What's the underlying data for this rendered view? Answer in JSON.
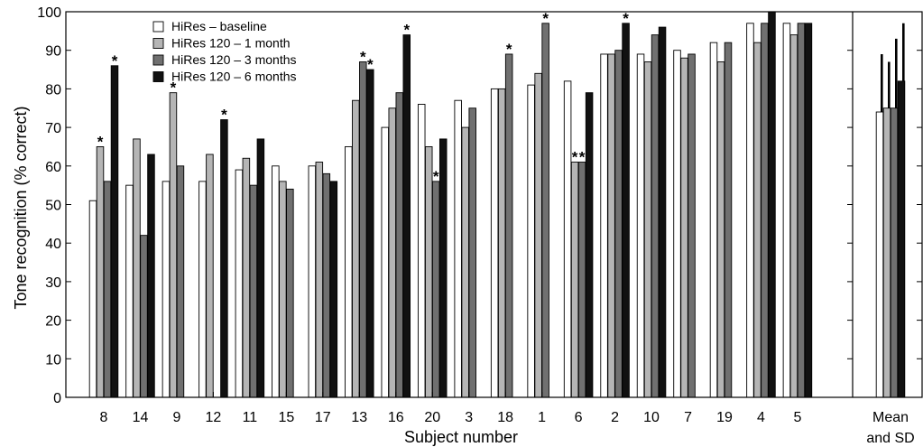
{
  "chart_data": {
    "type": "bar",
    "xlabel": "Subject number",
    "ylabel": "Tone recognition (% correct)",
    "ylim": [
      0,
      100
    ],
    "yticks": [
      0,
      10,
      20,
      30,
      40,
      50,
      60,
      70,
      80,
      90,
      100
    ],
    "categories": [
      "8",
      "14",
      "9",
      "12",
      "11",
      "15",
      "17",
      "13",
      "16",
      "20",
      "3",
      "18",
      "1",
      "6",
      "2",
      "10",
      "7",
      "19",
      "4",
      "5"
    ],
    "series": [
      {
        "name": "HiRes – baseline",
        "color": "#ffffff",
        "values": [
          51,
          55,
          56,
          56,
          59,
          60,
          60,
          65,
          70,
          76,
          77,
          80,
          81,
          82,
          89,
          89,
          90,
          92,
          97,
          97
        ]
      },
      {
        "name": "HiRes 120 – 1 month",
        "color": "#b5b5b5",
        "values": [
          65,
          67,
          79,
          63,
          62,
          56,
          61,
          77,
          75,
          65,
          70,
          80,
          84,
          61,
          89,
          87,
          88,
          87,
          92,
          94
        ]
      },
      {
        "name": "HiRes 120 – 3 months",
        "color": "#707070",
        "values": [
          56,
          42,
          60,
          null,
          55,
          54,
          58,
          87,
          79,
          56,
          75,
          89,
          97,
          61,
          90,
          94,
          89,
          92,
          97,
          97
        ]
      },
      {
        "name": "HiRes 120 – 6 months",
        "color": "#111111",
        "values": [
          86,
          63,
          null,
          72,
          67,
          null,
          56,
          85,
          94,
          67,
          null,
          null,
          null,
          79,
          97,
          96,
          null,
          null,
          100,
          97
        ]
      }
    ],
    "significance_marker": "*",
    "significant": [
      {
        "category": "8",
        "series": 1
      },
      {
        "category": "8",
        "series": 3
      },
      {
        "category": "9",
        "series": 1
      },
      {
        "category": "12",
        "series": 3
      },
      {
        "category": "13",
        "series": 2
      },
      {
        "category": "13",
        "series": 3
      },
      {
        "category": "16",
        "series": 3
      },
      {
        "category": "20",
        "series": 2
      },
      {
        "category": "18",
        "series": 2
      },
      {
        "category": "1",
        "series": 2
      },
      {
        "category": "6",
        "series": 1
      },
      {
        "category": "6",
        "series": 2
      },
      {
        "category": "2",
        "series": 3
      }
    ],
    "summary": {
      "label_line1": "Mean",
      "label_line2": "and SD",
      "means": [
        74,
        75,
        75,
        82
      ],
      "sds": [
        15,
        12,
        18,
        15
      ]
    },
    "legend": {
      "position": "top-left",
      "entries": [
        "HiRes – baseline",
        "HiRes 120 – 1 month",
        "HiRes 120 – 3 months",
        "HiRes 120 – 6 months"
      ]
    },
    "grid": false
  }
}
